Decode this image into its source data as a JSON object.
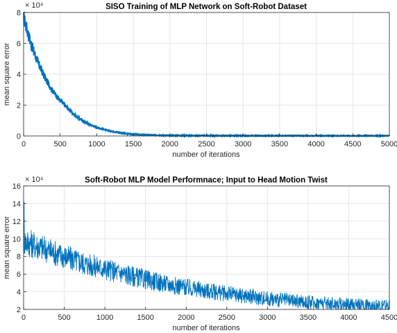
{
  "chart_data": [
    {
      "type": "line",
      "title": "SISO Training of MLP Network on Soft-Robot Dataset",
      "xlabel": "number of iterations",
      "ylabel": "mean square error",
      "exponent_label": "× 10⁴",
      "xlim": [
        0,
        5000
      ],
      "ylim": [
        0,
        8
      ],
      "y_scale_factor": 10000,
      "xticks": [
        0,
        500,
        1000,
        1500,
        2000,
        2500,
        3000,
        3500,
        4000,
        4500,
        5000
      ],
      "yticks": [
        0,
        2,
        4,
        6,
        8
      ],
      "grid": true,
      "series_color": "#0072bd",
      "series": [
        {
          "x": [
            0,
            100,
            200,
            300,
            400,
            500,
            600,
            700,
            800,
            900,
            1000,
            1200,
            1400,
            1600,
            2000,
            3000,
            4000,
            5000
          ],
          "values": [
            7.7,
            6.0,
            4.7,
            3.7,
            2.9,
            2.3,
            1.8,
            1.35,
            1.0,
            0.75,
            0.55,
            0.3,
            0.15,
            0.08,
            0.03,
            0.01,
            0.01,
            0.01
          ]
        }
      ]
    },
    {
      "type": "line",
      "title": "Soft-Robot MLP Model Performnace; Input to Head Motion Twist",
      "xlabel": "number of iterations",
      "ylabel": "mean square error",
      "exponent_label": "× 10⁴",
      "xlim": [
        0,
        4500
      ],
      "ylim": [
        2,
        16
      ],
      "y_scale_factor": 10000,
      "xticks": [
        0,
        500,
        1000,
        1500,
        2000,
        2500,
        3000,
        3500,
        4000,
        4500
      ],
      "yticks": [
        2,
        4,
        6,
        8,
        10,
        12,
        14,
        16
      ],
      "grid": true,
      "series_color": "#0072bd",
      "series": [
        {
          "x": [
            0,
            250,
            500,
            750,
            1000,
            1250,
            1500,
            1750,
            2000,
            2250,
            2500,
            2750,
            3000,
            3250,
            3500,
            3750,
            4000,
            4250,
            4500
          ],
          "values": [
            9.8,
            8.9,
            8.0,
            7.2,
            6.6,
            6.0,
            5.4,
            4.9,
            4.5,
            4.1,
            3.8,
            3.5,
            3.2,
            3.0,
            2.8,
            2.7,
            2.55,
            2.45,
            2.35
          ]
        }
      ]
    }
  ]
}
